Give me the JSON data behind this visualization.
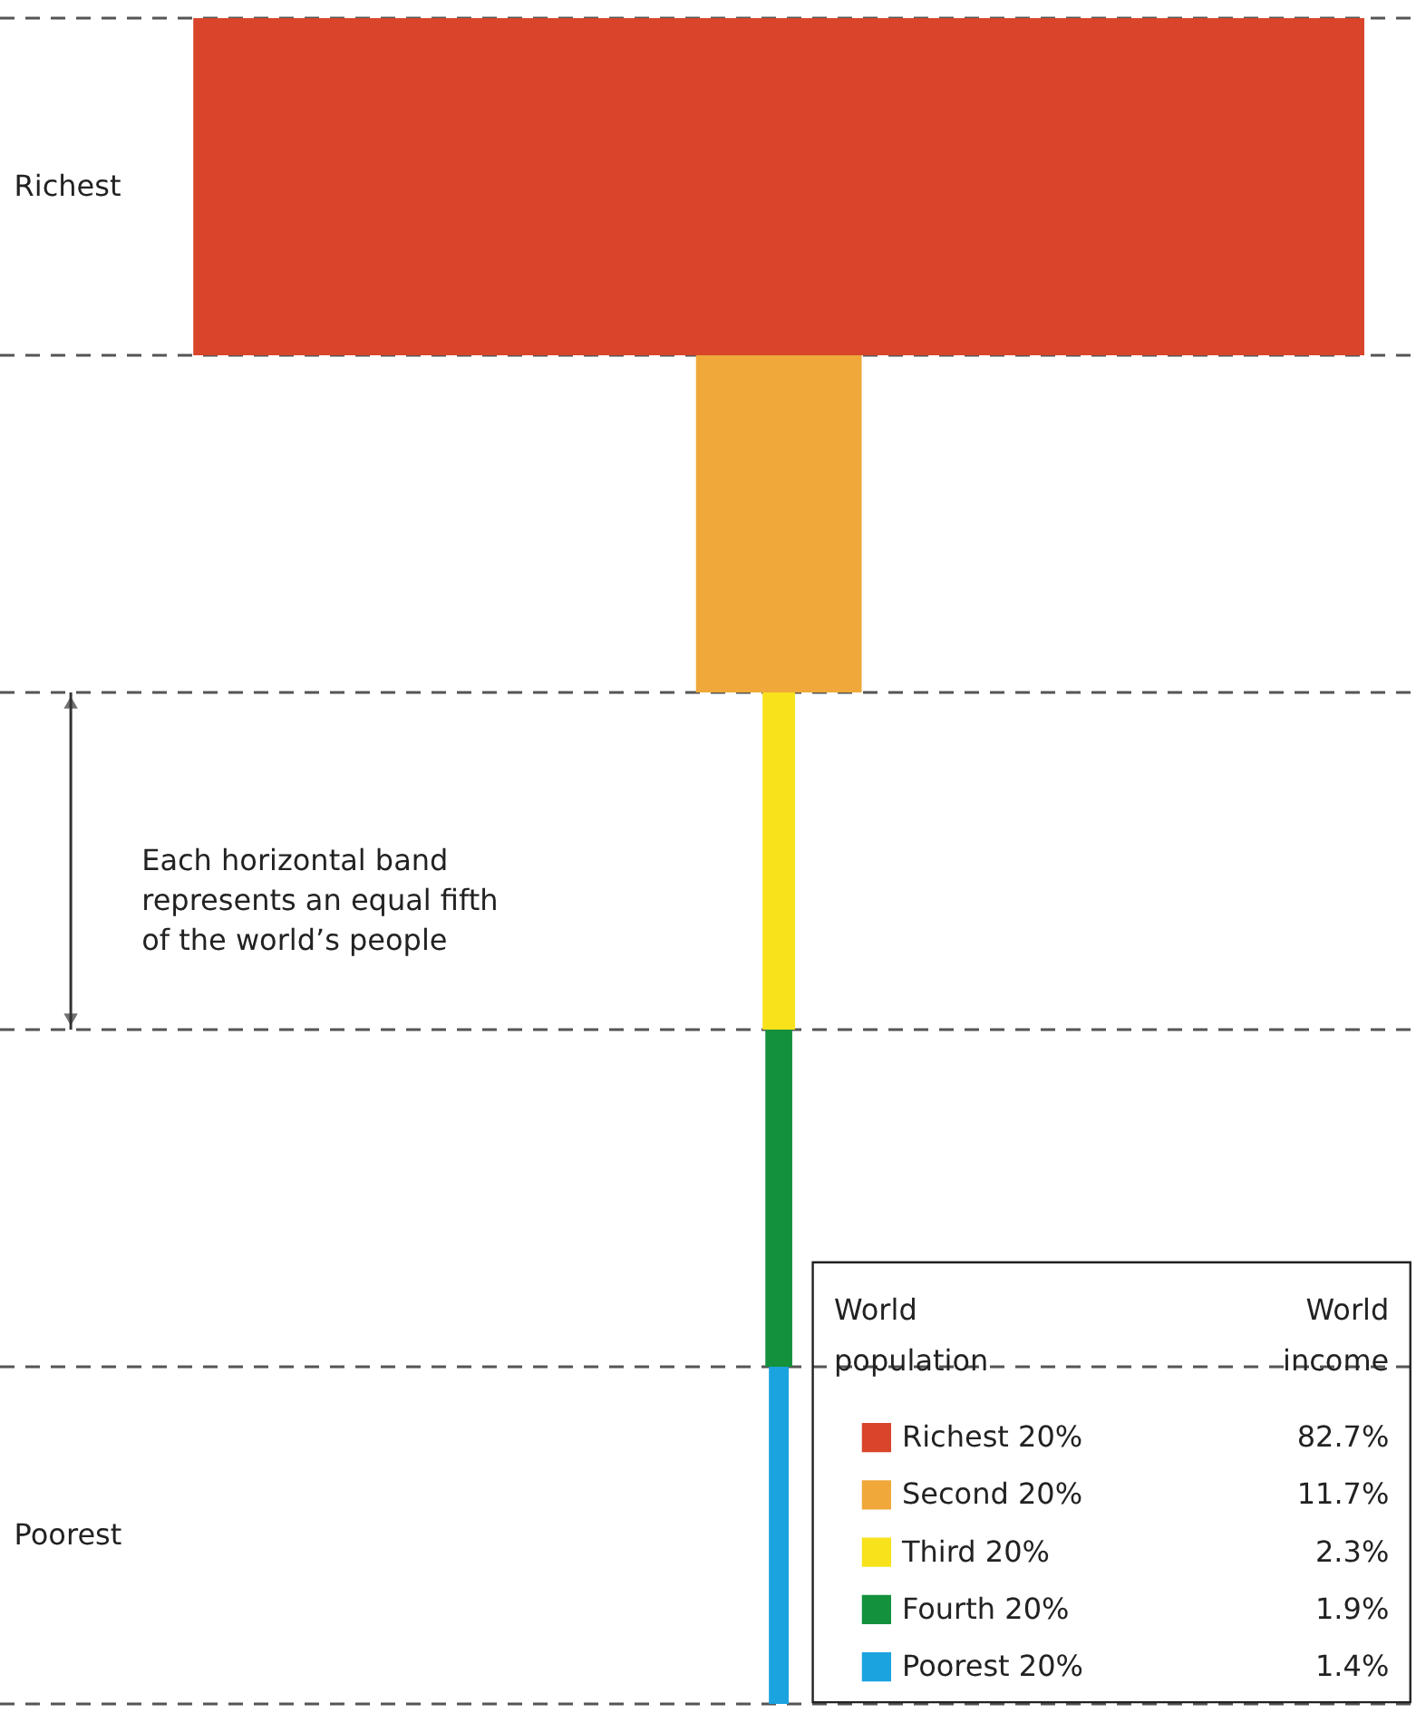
{
  "chart_data": {
    "type": "other",
    "categories": [
      "Richest 20%",
      "Second 20%",
      "Third 20%",
      "Fourth 20%",
      "Poorest 20%"
    ],
    "values": [
      82.7,
      11.7,
      2.3,
      1.9,
      1.4
    ],
    "value_labels": [
      "82.7%",
      "11.7%",
      "2.3%",
      "1.9%",
      "1.4%"
    ],
    "colors": [
      "#d9452a",
      "#f0a83a",
      "#f7e21c",
      "#13913d",
      "#1ba3e0"
    ],
    "legend_title": "World\npopulation",
    "ylabel": "World\nincome",
    "annotations": [
      "Richest",
      "Poorest",
      "Each horizontal band\nrepresents an equal fifth\nof the world’s people"
    ]
  }
}
